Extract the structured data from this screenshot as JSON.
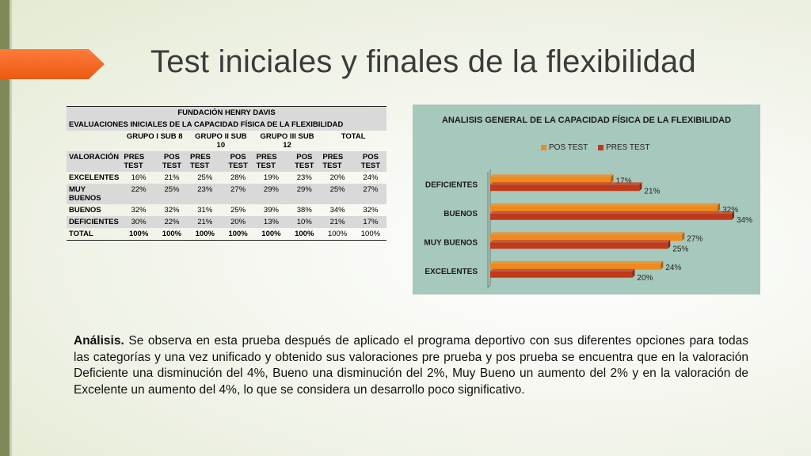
{
  "slide": {
    "title": "Test iniciales y finales de la flexibilidad"
  },
  "table": {
    "org": "FUNDACIÓN HENRY DAVIS",
    "subtitle": "EVALUACIONES INICIALES DE LA CAPACIDAD FÍSICA DE LA FLEXIBILIDAD",
    "groups": [
      "GRUPO I SUB 8",
      "GRUPO II SUB 10",
      "GRUPO III SUB 12",
      "TOTAL"
    ],
    "valoracion_label": "VALORACIÓN",
    "sub_headers": [
      "PRES TEST",
      "POS TEST",
      "PRES TEST",
      "POS TEST",
      "PRES TEST",
      "POS TEST",
      "PRES TEST",
      "POS TEST"
    ],
    "rows": [
      {
        "label": "EXCELENTES",
        "values": [
          "16%",
          "21%",
          "25%",
          "28%",
          "19%",
          "23%",
          "20%",
          "24%"
        ]
      },
      {
        "label": "MUY BUENOS",
        "values": [
          "22%",
          "25%",
          "23%",
          "27%",
          "29%",
          "29%",
          "25%",
          "27%"
        ]
      },
      {
        "label": "BUENOS",
        "values": [
          "32%",
          "32%",
          "31%",
          "25%",
          "39%",
          "38%",
          "34%",
          "32%"
        ]
      },
      {
        "label": "DEFICIENTES",
        "values": [
          "30%",
          "22%",
          "21%",
          "20%",
          "13%",
          "10%",
          "21%",
          "17%"
        ]
      },
      {
        "label": "TOTAL",
        "values": [
          "100%",
          "100%",
          "100%",
          "100%",
          "100%",
          "100%",
          "100%",
          "100%"
        ]
      }
    ]
  },
  "chart_data": {
    "type": "bar",
    "orientation": "horizontal",
    "title": "ANALISIS GENERAL DE LA CAPACIDAD FÍSICA DE LA FLEXIBILIDAD",
    "categories": [
      "DEFICIENTES",
      "BUENOS",
      "MUY BUENOS",
      "EXCELENTES"
    ],
    "series": [
      {
        "name": "POS TEST",
        "values": [
          17,
          32,
          27,
          24
        ],
        "labels": [
          "17%",
          "32%",
          "27%",
          "24%"
        ],
        "color": "#f08a1e"
      },
      {
        "name": "PRES TEST",
        "values": [
          21,
          34,
          25,
          20
        ],
        "labels": [
          "21%",
          "34%",
          "25%",
          "20%"
        ],
        "color": "#c0391b"
      }
    ],
    "xlim": [
      0,
      35
    ],
    "legend": "top",
    "grid": false
  },
  "analysis": {
    "lead": "Análisis.",
    "text": " Se observa en esta prueba después de aplicado el programa deportivo con sus diferentes opciones para todas las categorías y una vez unificado y obtenido sus valoraciones pre prueba y pos prueba se encuentra que en la valoración Deficiente una disminución del 4%, Bueno una disminución del 2%, Muy Bueno un aumento del 2% y en la valoración de Excelente  un aumento del 4%, lo que se considera un desarrollo poco significativo."
  }
}
